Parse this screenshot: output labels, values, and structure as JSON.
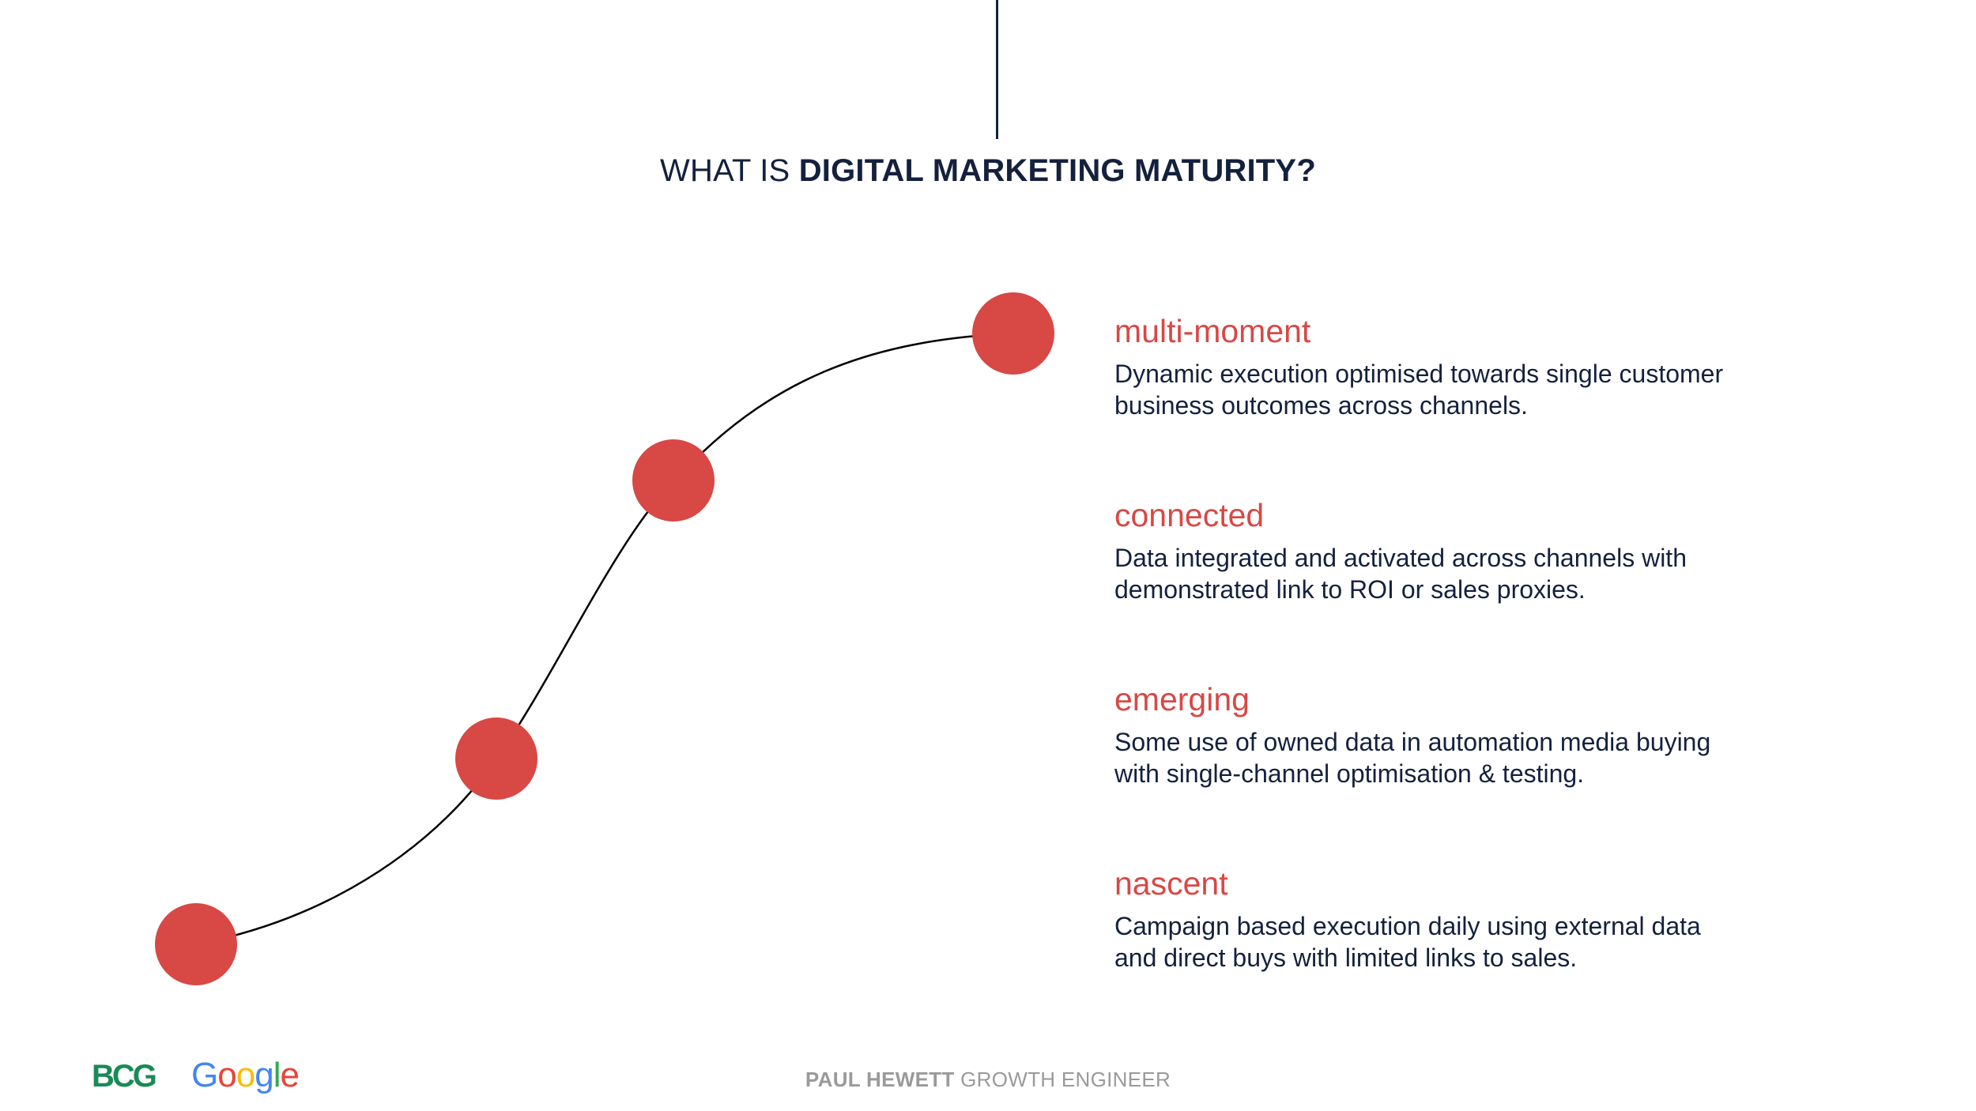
{
  "title": {
    "prefix": "WHAT IS ",
    "bold": "DIGITAL MARKETING MATURITY?"
  },
  "stages": [
    {
      "name": "multi-moment",
      "description": "Dynamic execution optimised towards single customer business outcomes across channels."
    },
    {
      "name": "connected",
      "description": "Data integrated and activated across channels with demonstrated link to ROI or sales proxies."
    },
    {
      "name": "emerging",
      "description": "Some use of owned data in automation media buying with single-channel optimisation & testing."
    },
    {
      "name": "nascent",
      "description": "Campaign based execution daily using external data and direct buys with limited links to sales."
    }
  ],
  "footer": {
    "logos": {
      "bcg": "BCG",
      "google": "Google"
    },
    "credit_name": "PAUL HEWETT",
    "credit_role": "GROWTH ENGINEER"
  },
  "colors": {
    "accent": "#d84845",
    "text": "#14213d",
    "muted": "#9a9a9a",
    "bcg_green": "#1a8a57",
    "google_blue": "#4285f4",
    "google_red": "#ea4335",
    "google_yellow": "#fbbc05",
    "google_green": "#34a853"
  }
}
